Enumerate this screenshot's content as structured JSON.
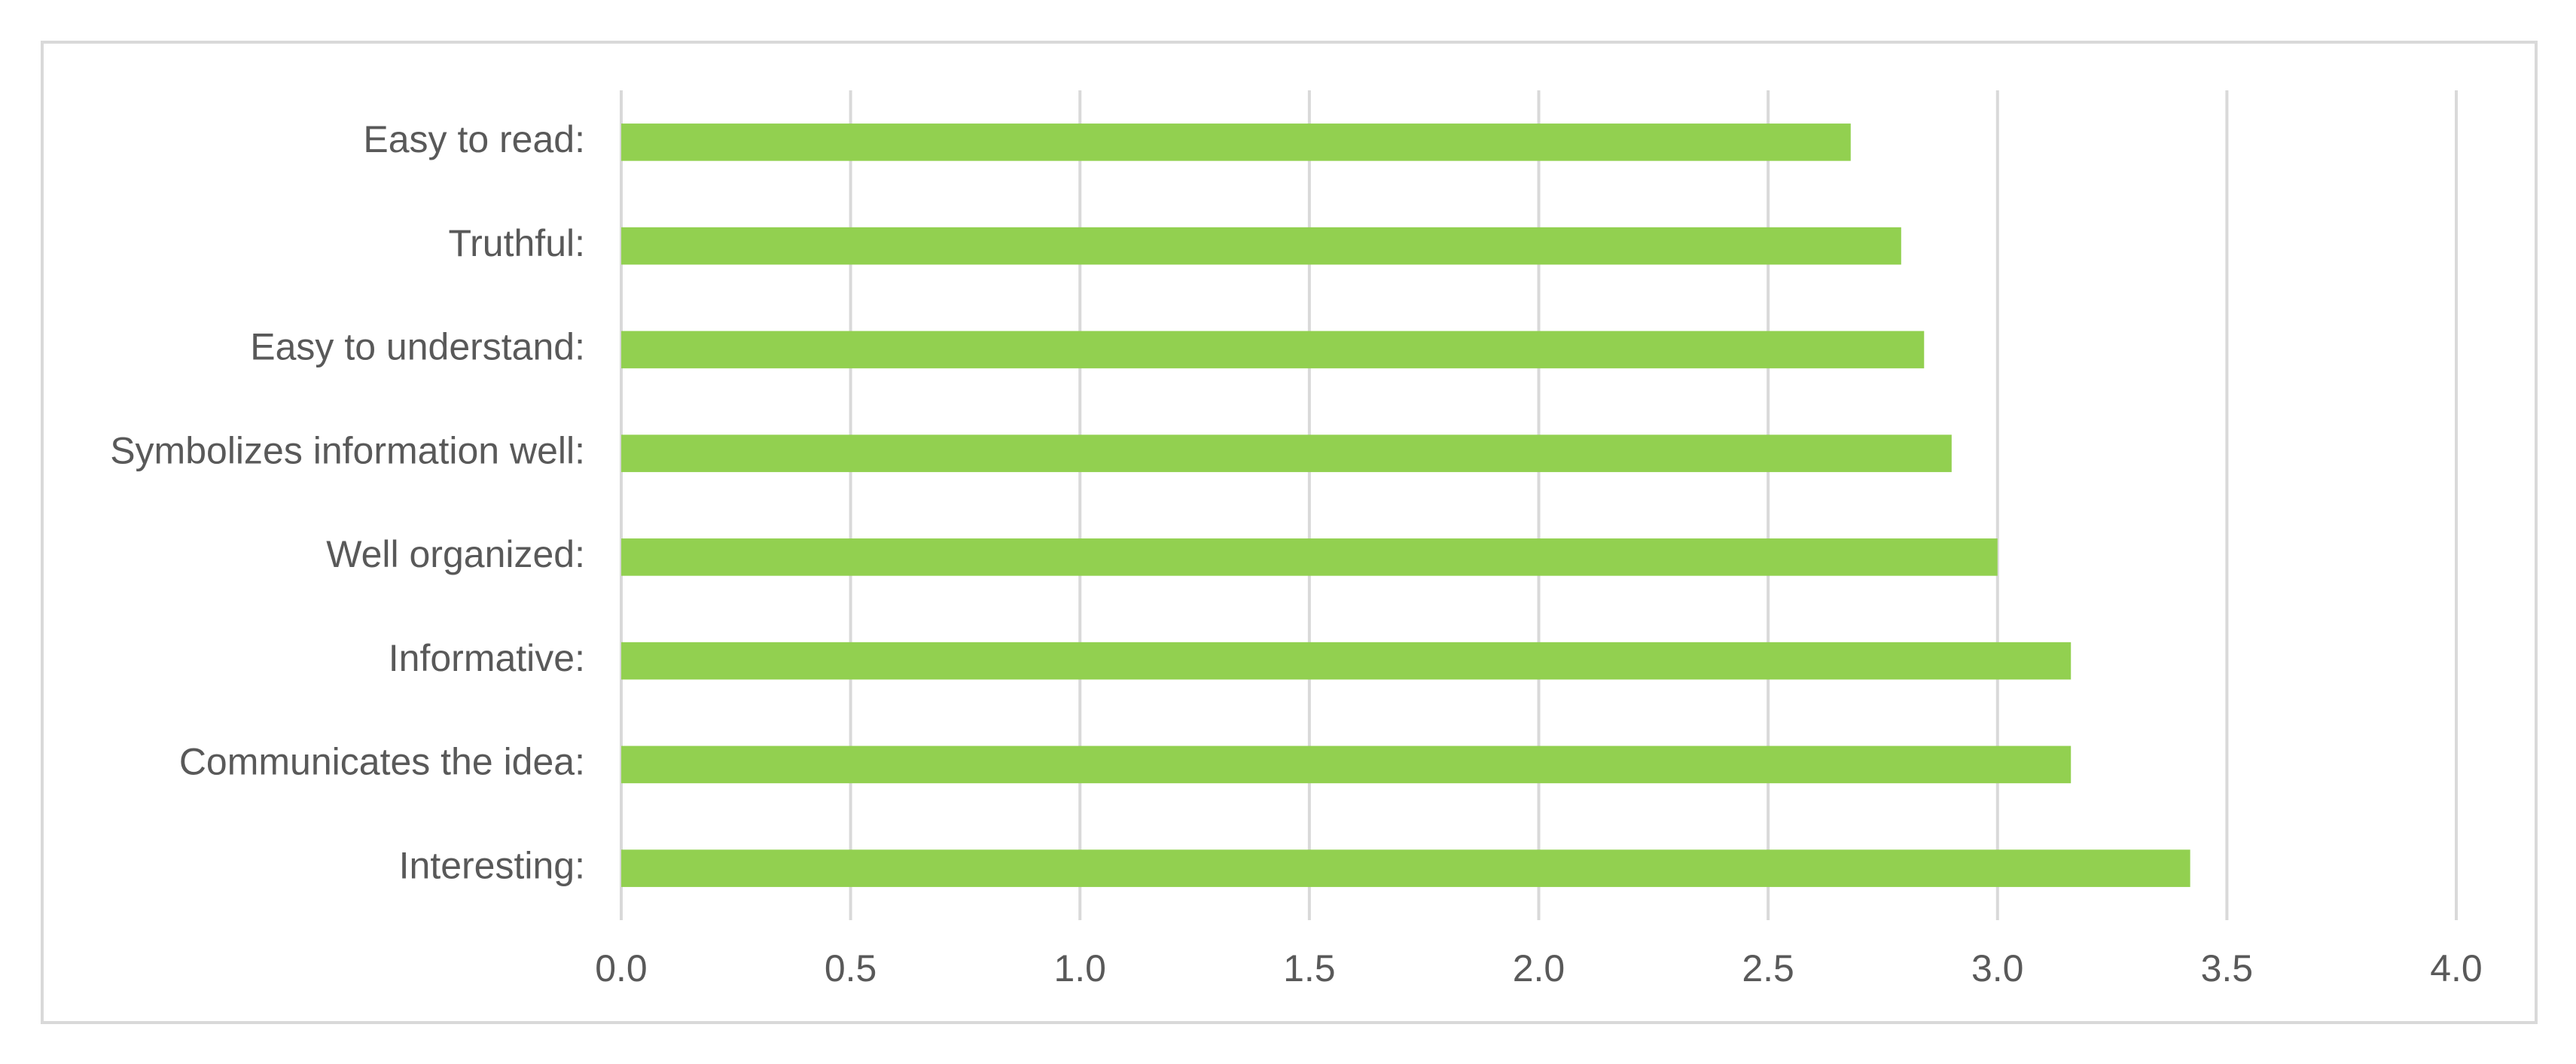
{
  "chart_data": {
    "type": "bar",
    "orientation": "horizontal",
    "categories": [
      "Easy to read:",
      "Truthful:",
      "Easy to understand:",
      "Symbolizes information well:",
      "Well organized:",
      "Informative:",
      "Communicates the idea:",
      "Interesting:"
    ],
    "values": [
      2.68,
      2.79,
      2.84,
      2.9,
      3.0,
      3.16,
      3.16,
      3.42
    ],
    "color": "#92d050",
    "xlim": [
      0,
      4
    ],
    "xticks": [
      {
        "value": 0,
        "label": "0.0"
      },
      {
        "value": 0.5,
        "label": "0.5"
      },
      {
        "value": 1,
        "label": "1.0"
      },
      {
        "value": 1.5,
        "label": "1.5"
      },
      {
        "value": 2,
        "label": "2.0"
      },
      {
        "value": 2.5,
        "label": "2.5"
      },
      {
        "value": 3,
        "label": "3.0"
      },
      {
        "value": 3.5,
        "label": "3.5"
      },
      {
        "value": 4,
        "label": "4.0"
      }
    ],
    "grid": true
  }
}
